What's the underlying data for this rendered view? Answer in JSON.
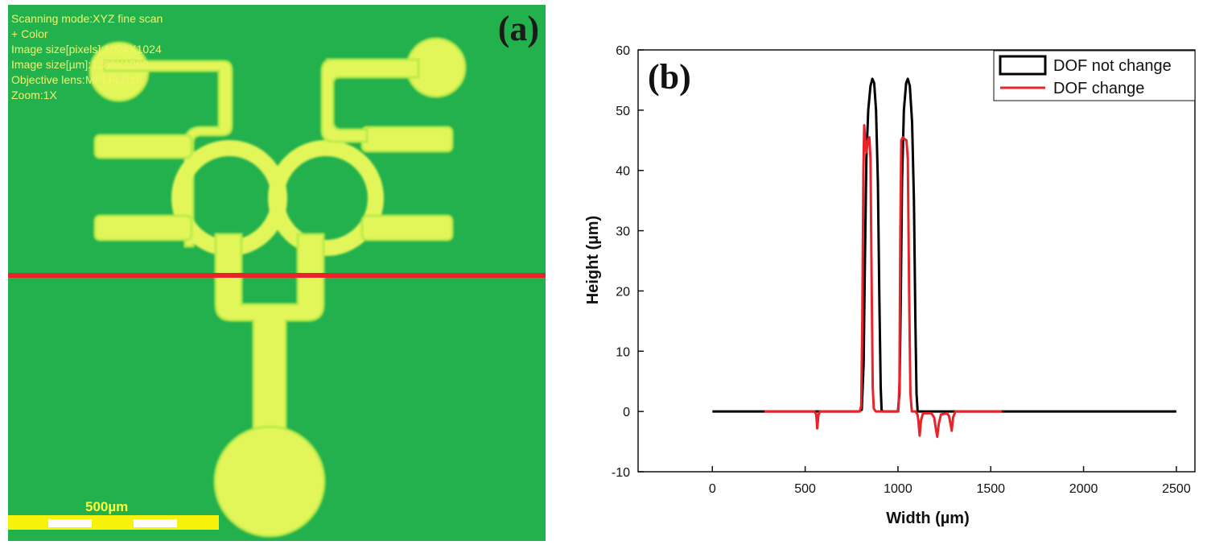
{
  "panel_a": {
    "label": "(a)",
    "overlay_lines": [
      "Scanning mode:XYZ fine scan",
      "+ Color",
      "Image size[pixels]:1024X1024",
      "Image size[µm]:1280X1280",
      "Objective lens:MPLFLN10",
      "Zoom:1X"
    ],
    "scale_bar_label": "500µm",
    "colors": {
      "background": "#22b14c",
      "pattern": "#e2f65a",
      "pattern_edge": "#b8ea4a",
      "scan_line": "#e8232a",
      "overlay_text": "#f6f26a"
    }
  },
  "chart_data": {
    "type": "line",
    "panel_label": "(b)",
    "xlabel": "Width (µm)",
    "ylabel": "Height (µm)",
    "xlim": [
      -400,
      2600
    ],
    "ylim": [
      -10,
      60
    ],
    "xticks": [
      0,
      500,
      1000,
      1500,
      2000,
      2500
    ],
    "yticks": [
      -10,
      0,
      10,
      20,
      30,
      40,
      50,
      60
    ],
    "grid": false,
    "legend_position": "top-right",
    "series": [
      {
        "name": "DOF not change",
        "color": "#000000",
        "points": [
          [
            0,
            0
          ],
          [
            790,
            0
          ],
          [
            805,
            0.3
          ],
          [
            815,
            8
          ],
          [
            822,
            25
          ],
          [
            830,
            42
          ],
          [
            840,
            50
          ],
          [
            852,
            54
          ],
          [
            862,
            55.2
          ],
          [
            872,
            54.5
          ],
          [
            882,
            50
          ],
          [
            892,
            38
          ],
          [
            900,
            18
          ],
          [
            907,
            4
          ],
          [
            912,
            0.2
          ],
          [
            920,
            0
          ],
          [
            1000,
            0
          ],
          [
            1008,
            3
          ],
          [
            1015,
            18
          ],
          [
            1022,
            38
          ],
          [
            1032,
            50
          ],
          [
            1044,
            54.5
          ],
          [
            1053,
            55.2
          ],
          [
            1064,
            54
          ],
          [
            1076,
            48
          ],
          [
            1086,
            35
          ],
          [
            1094,
            15
          ],
          [
            1100,
            3
          ],
          [
            1106,
            0
          ],
          [
            2500,
            0
          ]
        ]
      },
      {
        "name": "DOF change",
        "color": "#e8232a",
        "points": [
          [
            280,
            0
          ],
          [
            550,
            0
          ],
          [
            560,
            -0.5
          ],
          [
            565,
            -2.8
          ],
          [
            572,
            -0.5
          ],
          [
            580,
            0
          ],
          [
            795,
            0
          ],
          [
            802,
            1
          ],
          [
            808,
            15
          ],
          [
            814,
            40
          ],
          [
            818,
            47.5
          ],
          [
            824,
            45
          ],
          [
            830,
            43
          ],
          [
            838,
            45
          ],
          [
            846,
            45.5
          ],
          [
            852,
            42
          ],
          [
            858,
            22
          ],
          [
            864,
            4
          ],
          [
            870,
            0.5
          ],
          [
            880,
            0
          ],
          [
            1002,
            0
          ],
          [
            1008,
            5
          ],
          [
            1013,
            30
          ],
          [
            1018,
            45
          ],
          [
            1026,
            45.5
          ],
          [
            1036,
            45.2
          ],
          [
            1046,
            45
          ],
          [
            1053,
            42
          ],
          [
            1060,
            20
          ],
          [
            1067,
            3
          ],
          [
            1075,
            0
          ],
          [
            1095,
            0
          ],
          [
            1105,
            -0.5
          ],
          [
            1110,
            -1.5
          ],
          [
            1117,
            -4
          ],
          [
            1124,
            -1.5
          ],
          [
            1135,
            -0.3
          ],
          [
            1180,
            -0.3
          ],
          [
            1195,
            -1
          ],
          [
            1205,
            -3
          ],
          [
            1212,
            -4.2
          ],
          [
            1220,
            -2
          ],
          [
            1232,
            -0.5
          ],
          [
            1265,
            -0.3
          ],
          [
            1275,
            -0.8
          ],
          [
            1283,
            -2
          ],
          [
            1290,
            -3.2
          ],
          [
            1297,
            -1
          ],
          [
            1310,
            0
          ],
          [
            1560,
            0
          ]
        ]
      }
    ]
  }
}
